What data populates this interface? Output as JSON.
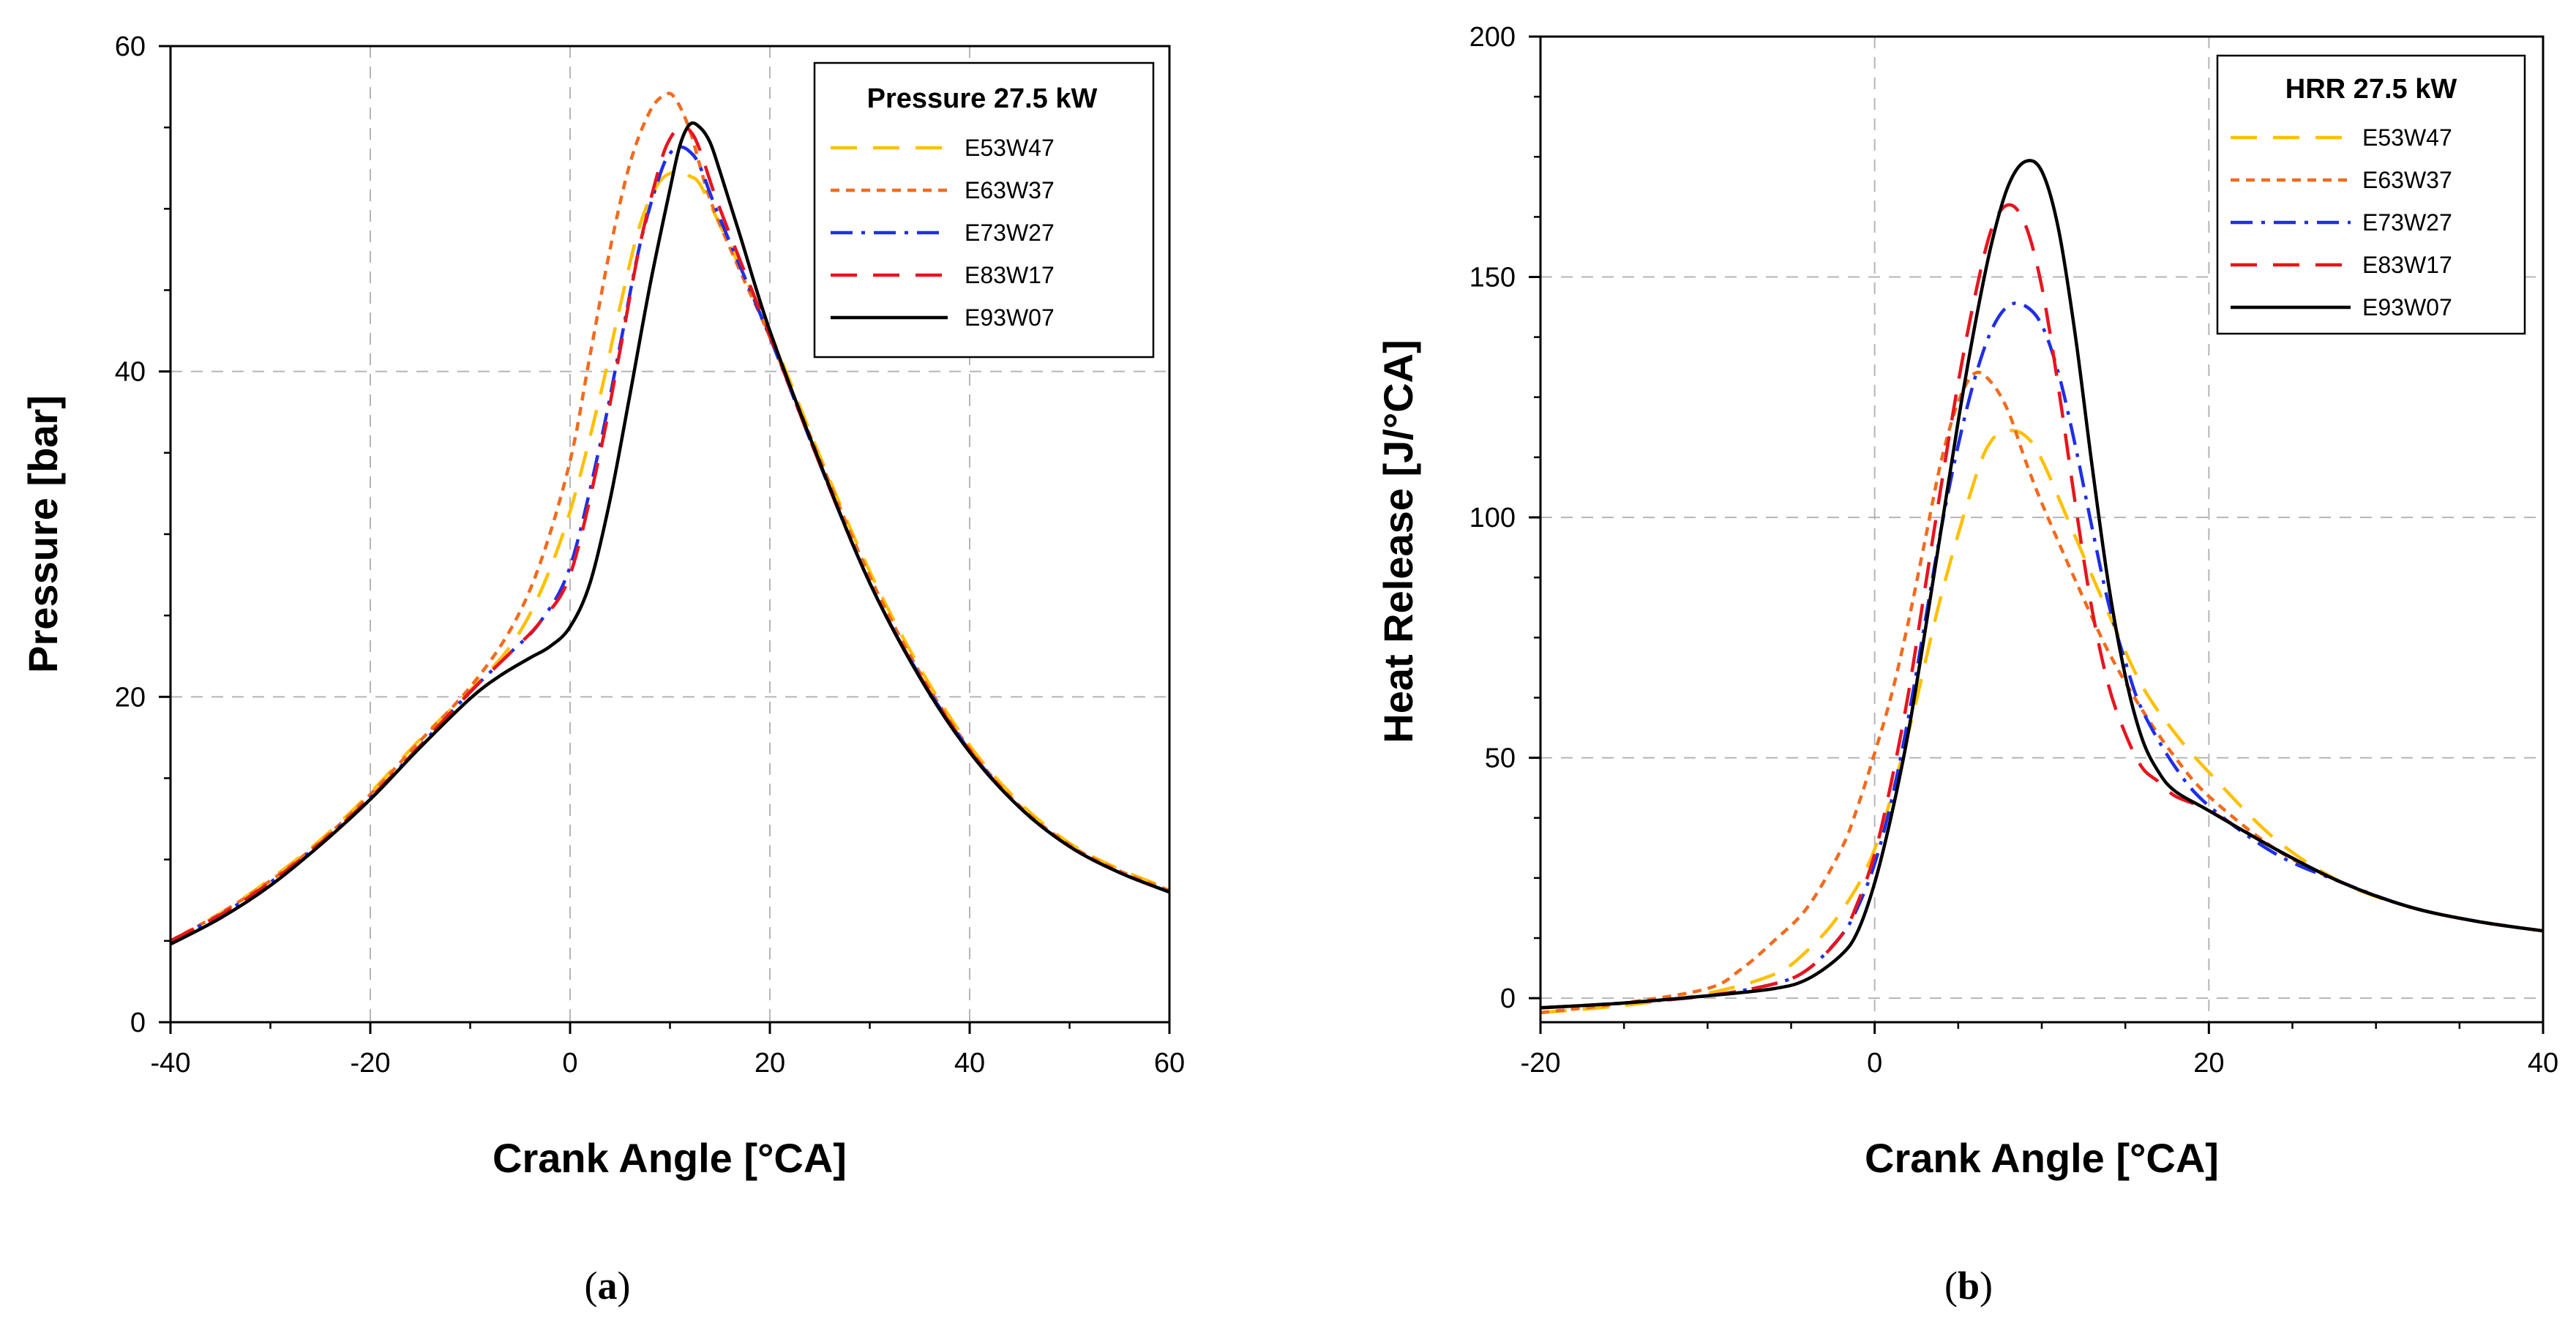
{
  "chart_data": [
    {
      "type": "line",
      "panel_label_open": "(",
      "panel_label_letter": "a",
      "panel_label_close": ")",
      "legend_title": "Pressure 27.5 kW",
      "xlabel": "Crank Angle [°CA]",
      "ylabel": "Pressure [bar]",
      "xlim": [
        -40,
        60
      ],
      "ylim": [
        0,
        60
      ],
      "xticks": [
        -40,
        -20,
        0,
        20,
        40,
        60
      ],
      "yticks": [
        0,
        20,
        40,
        60
      ],
      "grid": true,
      "legend_position": "top-right",
      "series": [
        {
          "name": "E53W47",
          "color": "#FFC000",
          "dash": "long-dash",
          "x": [
            -40,
            -35,
            -30,
            -25,
            -20,
            -15,
            -10,
            -6,
            -3,
            0,
            3,
            5,
            7,
            9,
            11,
            12,
            13,
            15,
            20,
            25,
            30,
            35,
            40,
            45,
            50,
            55,
            60
          ],
          "y": [
            5,
            6.7,
            8.8,
            11.2,
            14.1,
            17.4,
            20.4,
            23.1,
            26.4,
            31.4,
            38.5,
            44,
            49,
            51.7,
            52.3,
            52,
            51.5,
            49,
            42.4,
            34.8,
            27.7,
            21.8,
            17,
            13.5,
            11,
            9.4,
            8.2
          ]
        },
        {
          "name": "E63W37",
          "color": "#F26B1D",
          "dash": "short-dash",
          "x": [
            -40,
            -35,
            -30,
            -25,
            -20,
            -15,
            -10,
            -6,
            -3,
            0,
            2,
            4,
            6,
            8,
            9.5,
            10.5,
            12,
            14,
            17,
            20,
            25,
            30,
            35,
            40,
            45,
            50,
            55,
            60
          ],
          "y": [
            5,
            6.7,
            8.7,
            11.1,
            14,
            17.3,
            20.6,
            24.1,
            28.2,
            34.5,
            41,
            47.5,
            52.8,
            56,
            57,
            56.8,
            54.8,
            50.6,
            46.2,
            42.1,
            34.6,
            27.4,
            21.5,
            16.8,
            13.3,
            10.9,
            9.3,
            8.1
          ]
        },
        {
          "name": "E73W27",
          "color": "#1F2FE6",
          "dash": "dash-dot",
          "x": [
            -40,
            -35,
            -30,
            -25,
            -20,
            -15,
            -10,
            -6,
            -3,
            0,
            3,
            5,
            7,
            9,
            10,
            11,
            12,
            13,
            15,
            20,
            25,
            30,
            35,
            40,
            45,
            50,
            55,
            60
          ],
          "y": [
            5,
            6.6,
            8.6,
            11,
            13.8,
            17,
            20.3,
            22.7,
            24.6,
            28,
            35.5,
            41.6,
            47.8,
            52.1,
            53.4,
            53.8,
            53.5,
            52.6,
            49.4,
            42.1,
            34.3,
            27,
            21.3,
            16.7,
            13.2,
            10.8,
            9.2,
            8
          ]
        },
        {
          "name": "E83W17",
          "color": "#E8141E",
          "dash": "long-dash",
          "x": [
            -40,
            -35,
            -30,
            -25,
            -20,
            -15,
            -10,
            -6,
            -3,
            0,
            3,
            5,
            7,
            9,
            10,
            11,
            12,
            13,
            15,
            20,
            25,
            30,
            35,
            40,
            45,
            50,
            55,
            60
          ],
          "y": [
            5,
            6.6,
            8.6,
            11,
            13.8,
            17,
            20.3,
            22.7,
            24.6,
            27.5,
            35,
            41.3,
            47.8,
            52.7,
            54.3,
            55,
            54.8,
            53.6,
            50,
            42.2,
            34.3,
            27,
            21.3,
            16.7,
            13.2,
            10.8,
            9.2,
            8
          ]
        },
        {
          "name": "E93W07",
          "color": "#000000",
          "dash": "solid",
          "x": [
            -40,
            -35,
            -30,
            -25,
            -20,
            -15,
            -10,
            -7,
            -4,
            -2,
            0,
            2,
            4,
            6,
            8,
            10,
            11,
            12,
            13,
            14,
            15,
            17,
            20,
            25,
            30,
            35,
            40,
            45,
            50,
            55,
            60
          ],
          "y": [
            4.8,
            6.4,
            8.4,
            10.9,
            13.7,
            16.9,
            19.9,
            21.3,
            22.4,
            23.1,
            24.3,
            27,
            32.1,
            38.6,
            45.3,
            51.2,
            53.9,
            55.2,
            55,
            54.1,
            52.3,
            48.4,
            42.5,
            34.4,
            27,
            21.2,
            16.6,
            13.2,
            10.8,
            9.2,
            8
          ]
        }
      ]
    },
    {
      "type": "line",
      "panel_label_open": "(",
      "panel_label_letter": "b",
      "panel_label_close": ")",
      "legend_title": "HRR 27.5 kW",
      "xlabel": "Crank Angle [°CA]",
      "ylabel": "Heat Release [J/°CA]",
      "xlim": [
        -20,
        40
      ],
      "ylim": [
        -5,
        200
      ],
      "xticks": [
        -20,
        0,
        20,
        40
      ],
      "yticks": [
        0,
        50,
        100,
        150,
        200
      ],
      "grid": true,
      "legend_position": "top-right",
      "series": [
        {
          "name": "E53W47",
          "color": "#FFC000",
          "dash": "long-dash",
          "x": [
            -20,
            -15,
            -10,
            -6,
            -4,
            -2,
            0,
            2,
            4,
            6,
            7,
            8,
            9,
            10,
            12,
            14,
            16,
            18,
            20,
            24,
            28,
            32,
            36,
            40
          ],
          "y": [
            -3,
            -1.5,
            1,
            5,
            10,
            18,
            31,
            55,
            84,
            108,
            116,
            118,
            117,
            112,
            96,
            80,
            65,
            55,
            47,
            33,
            24,
            19,
            16,
            14
          ]
        },
        {
          "name": "E63W37",
          "color": "#F26B1D",
          "dash": "short-dash",
          "x": [
            -20,
            -15,
            -10,
            -8,
            -6,
            -4,
            -2,
            -1,
            0,
            1,
            2,
            3,
            4,
            5,
            6,
            7,
            8,
            9,
            10,
            12,
            14,
            16,
            18,
            20,
            24,
            28,
            32,
            36,
            40
          ],
          "y": [
            -3,
            -1,
            2,
            6,
            12,
            19,
            31,
            40,
            51,
            63,
            78,
            95,
            112,
            124,
            130,
            128,
            122,
            112,
            103,
            87,
            72,
            60,
            50,
            42,
            31,
            24,
            19,
            16,
            14
          ]
        },
        {
          "name": "E73W27",
          "color": "#1F2FE6",
          "dash": "dash-dot",
          "x": [
            -20,
            -15,
            -10,
            -6,
            -4,
            -2,
            -1,
            0,
            1,
            2,
            3,
            4,
            5,
            6,
            7,
            8,
            9,
            10,
            11,
            12,
            13,
            14,
            15,
            16,
            18,
            20,
            24,
            28,
            32,
            36,
            40
          ],
          "y": [
            -2,
            -1,
            0.5,
            3,
            6,
            13,
            19,
            28,
            41,
            58,
            78,
            98,
            115,
            129,
            139,
            144,
            144,
            140,
            130,
            115,
            98,
            82,
            70,
            60,
            48,
            40,
            30,
            24,
            19,
            16,
            14
          ]
        },
        {
          "name": "E83W17",
          "color": "#E8141E",
          "dash": "long-dash",
          "x": [
            -20,
            -15,
            -10,
            -6,
            -4,
            -2,
            -1,
            0,
            1,
            2,
            3,
            4,
            5,
            6,
            7,
            8,
            9,
            10,
            11,
            12,
            13,
            14,
            15,
            16,
            17,
            18,
            20,
            24,
            28,
            32,
            36,
            40
          ],
          "y": [
            -2,
            -1,
            0.5,
            3,
            6,
            13,
            20,
            30,
            45,
            63,
            85,
            107,
            128,
            146,
            160,
            165,
            161,
            148,
            127,
            103,
            81,
            65,
            55,
            48,
            45,
            42,
            39,
            31,
            24,
            19,
            16,
            14
          ]
        },
        {
          "name": "E93W07",
          "color": "#000000",
          "dash": "solid",
          "x": [
            -20,
            -15,
            -10,
            -6,
            -4,
            -2,
            -1,
            0,
            1,
            2,
            3,
            4,
            5,
            6,
            7,
            8,
            9,
            10,
            11,
            12,
            13,
            14,
            15,
            16,
            17,
            18,
            20,
            24,
            28,
            32,
            36,
            40
          ],
          "y": [
            -2,
            -1,
            0.5,
            2,
            4,
            9,
            14,
            24,
            38,
            55,
            76,
            98,
            120,
            140,
            157,
            169,
            174,
            172,
            160,
            138,
            111,
            86,
            67,
            54,
            47,
            43,
            39,
            31,
            24,
            19,
            16,
            14
          ]
        }
      ]
    }
  ]
}
